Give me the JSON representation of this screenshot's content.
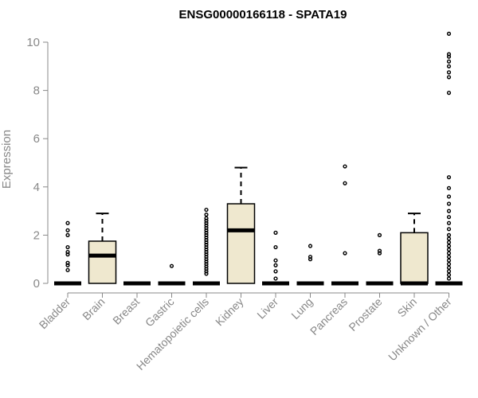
{
  "chart_data": {
    "type": "boxplot",
    "title": "ENSG00000166118 - SPATA19",
    "ylabel": "Expression",
    "xlabel": "",
    "ylim": [
      0,
      10.5
    ],
    "yticks": [
      0,
      2,
      4,
      6,
      8,
      10
    ],
    "colors": {
      "box_fill": "#efe8cf",
      "stroke": "#000000",
      "axis": "#888888"
    },
    "categories": [
      "Bladder",
      "Brain",
      "Breast",
      "Gastric",
      "Hematopoietic cells",
      "Kidney",
      "Liver",
      "Lung",
      "Pancreas",
      "Prostate",
      "Skin",
      "Unknown / Other"
    ],
    "boxes": [
      {
        "q1": 0,
        "median": 0,
        "q3": 0,
        "whisker_low": 0,
        "whisker_high": 0,
        "outliers": [
          0.55,
          0.75,
          0.85,
          1.2,
          1.3,
          1.5,
          2.0,
          2.2,
          2.5
        ]
      },
      {
        "q1": 0,
        "median": 1.15,
        "q3": 1.75,
        "whisker_low": 0,
        "whisker_high": 2.9,
        "outliers": []
      },
      {
        "q1": 0,
        "median": 0,
        "q3": 0,
        "whisker_low": 0,
        "whisker_high": 0,
        "outliers": []
      },
      {
        "q1": 0,
        "median": 0,
        "q3": 0,
        "whisker_low": 0,
        "whisker_high": 0,
        "outliers": [
          0.72
        ]
      },
      {
        "q1": 0,
        "median": 0,
        "q3": 0,
        "whisker_low": 0,
        "whisker_high": 0,
        "outliers": [
          0.4,
          0.5,
          0.6,
          0.7,
          0.8,
          0.9,
          1.0,
          1.1,
          1.2,
          1.3,
          1.4,
          1.5,
          1.6,
          1.7,
          1.8,
          1.9,
          2.0,
          2.1,
          2.2,
          2.3,
          2.4,
          2.5,
          2.6,
          2.7,
          2.85,
          3.05
        ]
      },
      {
        "q1": 0,
        "median": 2.2,
        "q3": 3.3,
        "whisker_low": 0,
        "whisker_high": 4.8,
        "outliers": []
      },
      {
        "q1": 0,
        "median": 0,
        "q3": 0,
        "whisker_low": 0,
        "whisker_high": 0,
        "outliers": [
          0.2,
          0.5,
          0.75,
          0.95,
          1.5,
          2.1
        ]
      },
      {
        "q1": 0,
        "median": 0,
        "q3": 0,
        "whisker_low": 0,
        "whisker_high": 0,
        "outliers": [
          1.0,
          1.1,
          1.55
        ]
      },
      {
        "q1": 0,
        "median": 0,
        "q3": 0,
        "whisker_low": 0,
        "whisker_high": 0,
        "outliers": [
          1.25,
          4.15,
          4.85
        ]
      },
      {
        "q1": 0,
        "median": 0,
        "q3": 0,
        "whisker_low": 0,
        "whisker_high": 0,
        "outliers": [
          1.25,
          1.35,
          2.0
        ]
      },
      {
        "q1": 0,
        "median": 0,
        "q3": 2.1,
        "whisker_low": 0,
        "whisker_high": 2.9,
        "outliers": []
      },
      {
        "q1": 0,
        "median": 0,
        "q3": 0,
        "whisker_low": 0,
        "whisker_high": 0,
        "outliers": [
          0.2,
          0.35,
          0.5,
          0.65,
          0.8,
          0.95,
          1.1,
          1.25,
          1.4,
          1.55,
          1.7,
          1.85,
          2.0,
          2.25,
          2.5,
          2.75,
          3.0,
          3.3,
          3.6,
          3.95,
          4.4,
          7.9,
          8.55,
          8.75,
          9.0,
          9.2,
          9.4,
          9.5,
          10.35
        ]
      }
    ]
  }
}
